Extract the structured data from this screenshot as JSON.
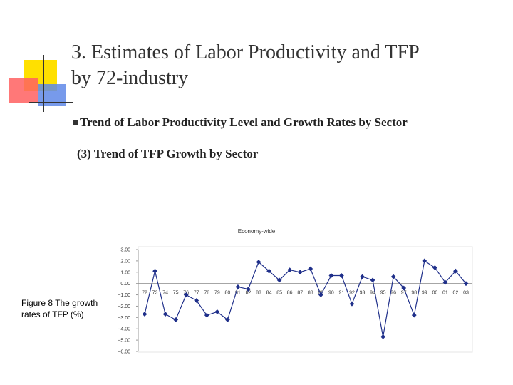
{
  "slide": {
    "title_line1": "3. Estimates of Labor Productivity and TFP",
    "title_line2": "by 72-industry",
    "bullet": "Trend of Labor Productivity Level and Growth Rates by Sector",
    "subheading": "(3) Trend of TFP Growth by Sector",
    "figure_caption": "Figure 8 The growth rates of TFP (%)"
  },
  "colors": {
    "series": "#1f2f8a",
    "title_text": "#333333",
    "accent_yellow": "#ffe000",
    "accent_red": "#ff6060",
    "accent_blue": "#5f88e8"
  },
  "chart_data": {
    "type": "line",
    "title": "Economy-wide",
    "y_ticks": [
      "3.00",
      "2.00",
      "1.00",
      "0.00",
      "−1.00",
      "−2.00",
      "−3.00",
      "−4.00",
      "−5.00",
      "−6.00"
    ],
    "ylim": [
      -6,
      3
    ],
    "categories": [
      "72",
      "73",
      "74",
      "75",
      "76",
      "77",
      "78",
      "79",
      "80",
      "81",
      "82",
      "83",
      "84",
      "85",
      "86",
      "87",
      "88",
      "89",
      "90",
      "91",
      "92",
      "93",
      "94",
      "95",
      "96",
      "97",
      "98",
      "99",
      "00",
      "01",
      "02",
      "03"
    ],
    "x_tick_labels": [
      "72",
      "73",
      "74",
      "75",
      "76",
      "77",
      "78",
      "79",
      "80",
      "81",
      "82",
      "83",
      "84",
      "85",
      "86",
      "87",
      "88",
      "89",
      "90",
      "91",
      "92",
      "93",
      "94",
      "95",
      "96",
      "97",
      "98",
      "99",
      "00",
      "01",
      "02",
      "03"
    ],
    "values": [
      -2.7,
      1.1,
      -2.7,
      -3.2,
      -1.0,
      -1.5,
      -2.8,
      -2.5,
      -3.2,
      -0.3,
      -0.5,
      1.9,
      1.1,
      0.3,
      1.2,
      1.0,
      1.3,
      -1.0,
      0.7,
      0.7,
      -1.8,
      0.6,
      0.3,
      -4.7,
      0.6,
      -0.4,
      -2.8,
      2.0,
      1.4,
      0.1,
      1.1,
      0.0
    ],
    "grid": false,
    "legend": "none"
  }
}
